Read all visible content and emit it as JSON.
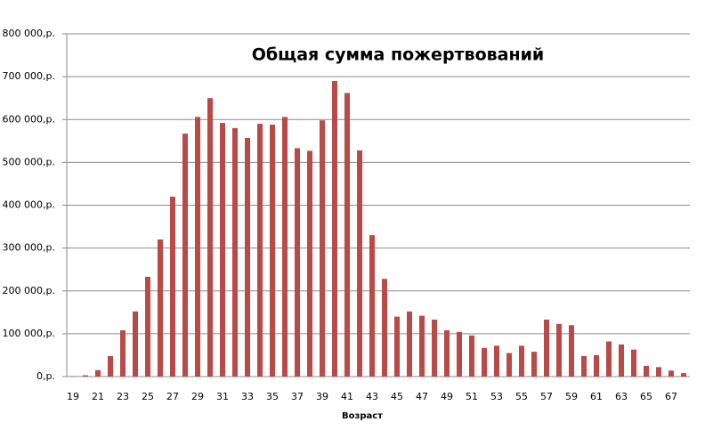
{
  "chart_data": {
    "type": "bar",
    "title": "Общая сумма пожертвований",
    "x_label": "Возраст",
    "categories": [
      19,
      null,
      21,
      null,
      23,
      null,
      25,
      null,
      27,
      null,
      29,
      null,
      31,
      null,
      33,
      null,
      35,
      null,
      37,
      null,
      39,
      null,
      41,
      null,
      43,
      null,
      45,
      null,
      47,
      null,
      49,
      null,
      51,
      null,
      53,
      null,
      55,
      null,
      57,
      null,
      59,
      null,
      61,
      null,
      63,
      null,
      65,
      null,
      67,
      null
    ],
    "values": [
      1000,
      3000,
      15000,
      48000,
      108000,
      152000,
      233000,
      320000,
      420000,
      567000,
      606000,
      650000,
      592000,
      580000,
      557000,
      590000,
      588000,
      606000,
      533000,
      527000,
      598000,
      690000,
      662000,
      528000,
      330000,
      228000,
      140000,
      152000,
      142000,
      133000,
      108000,
      104000,
      96000,
      67000,
      72000,
      55000,
      72000,
      58000,
      133000,
      123000,
      120000,
      48000,
      50000,
      82000,
      75000,
      63000,
      25000,
      22000,
      14000,
      8000
    ],
    "color": "#b94a48",
    "ylim": [
      0,
      800000
    ],
    "yticks": [
      {
        "value": 0,
        "label": "0,р."
      },
      {
        "value": 100000,
        "label": "100 000,р."
      },
      {
        "value": 200000,
        "label": "200 000,р."
      },
      {
        "value": 300000,
        "label": "300 000,р."
      },
      {
        "value": 400000,
        "label": "400 000,р."
      },
      {
        "value": 500000,
        "label": "500 000,р."
      },
      {
        "value": 600000,
        "label": "600 000,р."
      },
      {
        "value": 700000,
        "label": "700 000,р."
      },
      {
        "value": 800000,
        "label": "800 000,р."
      }
    ],
    "grid": true
  }
}
